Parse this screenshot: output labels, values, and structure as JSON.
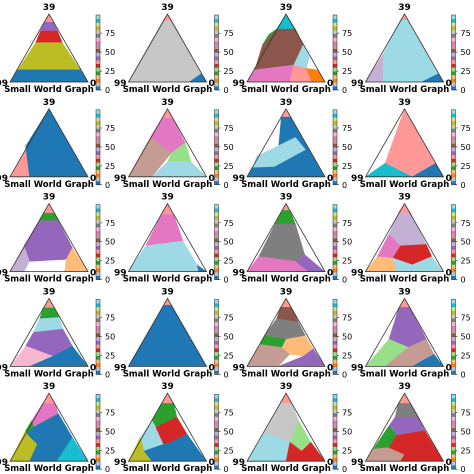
{
  "figure": {
    "panel_title": "39",
    "left_corner_label": "99",
    "right_corner_label": "0",
    "bottom_label": "Small World Graph"
  },
  "colorbar": {
    "ticks": [
      0,
      25,
      50,
      75
    ],
    "range": [
      0,
      99
    ],
    "colors": [
      "#1f77b4",
      "#aec7e8",
      "#ff7f0e",
      "#ffbb78",
      "#2ca02c",
      "#98df8a",
      "#d62728",
      "#ff9896",
      "#9467bd",
      "#c5b0d5",
      "#8c564b",
      "#c49c94",
      "#e377c2",
      "#f7b6d2",
      "#7f7f7f",
      "#c7c7c7",
      "#bcbd22",
      "#dbdb8d",
      "#17becf",
      "#9edae5"
    ]
  },
  "chart_data": [
    {
      "type": "heatmap",
      "panel": 1,
      "regions": [
        {
          "color": "#ff9896"
        },
        {
          "color": "#9467bd"
        },
        {
          "color": "#d62728"
        },
        {
          "color": "#bcbd22"
        },
        {
          "color": "#1f77b4"
        }
      ]
    },
    {
      "type": "heatmap",
      "panel": 2,
      "regions": [
        {
          "color": "#ff9896"
        },
        {
          "color": "#c7c7c7"
        },
        {
          "color": "#1f77b4"
        }
      ]
    },
    {
      "type": "heatmap",
      "panel": 3,
      "regions": [
        {
          "color": "#17becf"
        },
        {
          "color": "#8c564b"
        },
        {
          "color": "#2ca02c"
        },
        {
          "color": "#9edae5"
        },
        {
          "color": "#e377c2"
        },
        {
          "color": "#ff9896"
        },
        {
          "color": "#ff7f0e"
        }
      ]
    },
    {
      "type": "heatmap",
      "panel": 4,
      "regions": [
        {
          "color": "#ff9896"
        },
        {
          "color": "#9edae5"
        },
        {
          "color": "#c5b0d5"
        },
        {
          "color": "#1f77b4"
        }
      ]
    },
    {
      "type": "heatmap",
      "panel": 5,
      "regions": [
        {
          "color": "#ff9896"
        },
        {
          "color": "#1f77b4"
        }
      ]
    },
    {
      "type": "heatmap",
      "panel": 6,
      "regions": [
        {
          "color": "#ff9896"
        },
        {
          "color": "#e377c2"
        },
        {
          "color": "#c49c94"
        },
        {
          "color": "#98df8a"
        },
        {
          "color": "#9edae5"
        }
      ]
    },
    {
      "type": "heatmap",
      "panel": 7,
      "regions": [
        {
          "color": "#ff9896"
        },
        {
          "color": "#1f77b4"
        },
        {
          "color": "#9edae5"
        }
      ]
    },
    {
      "type": "heatmap",
      "panel": 8,
      "regions": [
        {
          "color": "#ff9896"
        },
        {
          "color": "#17becf"
        },
        {
          "color": "#1f77b4"
        }
      ]
    },
    {
      "type": "heatmap",
      "panel": 9,
      "regions": [
        {
          "color": "#ff9896"
        },
        {
          "color": "#2ca02c"
        },
        {
          "color": "#9467bd"
        },
        {
          "color": "#c5b0d5"
        },
        {
          "color": "#ffbb78"
        }
      ]
    },
    {
      "type": "heatmap",
      "panel": 10,
      "regions": [
        {
          "color": "#ff9896"
        },
        {
          "color": "#e377c2"
        },
        {
          "color": "#9edae5"
        },
        {
          "color": "#1f77b4"
        }
      ]
    },
    {
      "type": "heatmap",
      "panel": 11,
      "regions": [
        {
          "color": "#ff9896"
        },
        {
          "color": "#2ca02c"
        },
        {
          "color": "#7f7f7f"
        },
        {
          "color": "#9467bd"
        },
        {
          "color": "#e377c2"
        }
      ]
    },
    {
      "type": "heatmap",
      "panel": 12,
      "regions": [
        {
          "color": "#ff9896"
        },
        {
          "color": "#c5b0d5"
        },
        {
          "color": "#e377c2"
        },
        {
          "color": "#ffbb78"
        },
        {
          "color": "#d62728"
        },
        {
          "color": "#9edae5"
        }
      ]
    },
    {
      "type": "heatmap",
      "panel": 13,
      "regions": [
        {
          "color": "#ff9896"
        },
        {
          "color": "#2ca02c"
        },
        {
          "color": "#9edae5"
        },
        {
          "color": "#9467bd"
        },
        {
          "color": "#f7b6d2"
        },
        {
          "color": "#1f77b4"
        }
      ]
    },
    {
      "type": "heatmap",
      "panel": 14,
      "regions": [
        {
          "color": "#ff9896"
        },
        {
          "color": "#1f77b4"
        }
      ]
    },
    {
      "type": "heatmap",
      "panel": 15,
      "regions": [
        {
          "color": "#ff9896"
        },
        {
          "color": "#8c564b"
        },
        {
          "color": "#7f7f7f"
        },
        {
          "color": "#2ca02c"
        },
        {
          "color": "#c49c94"
        },
        {
          "color": "#ffbb78"
        },
        {
          "color": "#9467bd"
        }
      ]
    },
    {
      "type": "heatmap",
      "panel": 16,
      "regions": [
        {
          "color": "#ff9896"
        },
        {
          "color": "#9467bd"
        },
        {
          "color": "#98df8a"
        },
        {
          "color": "#c49c94"
        },
        {
          "color": "#1f77b4"
        }
      ]
    },
    {
      "type": "heatmap",
      "panel": 17,
      "regions": [
        {
          "color": "#ff9896"
        },
        {
          "color": "#e377c2"
        },
        {
          "color": "#2ca02c"
        },
        {
          "color": "#bcbd22"
        },
        {
          "color": "#1f77b4"
        },
        {
          "color": "#17becf"
        }
      ]
    },
    {
      "type": "heatmap",
      "panel": 18,
      "regions": [
        {
          "color": "#ff9896"
        },
        {
          "color": "#2ca02c"
        },
        {
          "color": "#9edae5"
        },
        {
          "color": "#bcbd22"
        },
        {
          "color": "#d62728"
        },
        {
          "color": "#1f77b4"
        }
      ]
    },
    {
      "type": "heatmap",
      "panel": 19,
      "regions": [
        {
          "color": "#ff9896"
        },
        {
          "color": "#c7c7c7"
        },
        {
          "color": "#9edae5"
        },
        {
          "color": "#98df8a"
        },
        {
          "color": "#d62728"
        }
      ]
    },
    {
      "type": "heatmap",
      "panel": 20,
      "regions": [
        {
          "color": "#ff9896"
        },
        {
          "color": "#7f7f7f"
        },
        {
          "color": "#9467bd"
        },
        {
          "color": "#2ca02c"
        },
        {
          "color": "#c49c94"
        },
        {
          "color": "#d62728"
        }
      ]
    }
  ]
}
